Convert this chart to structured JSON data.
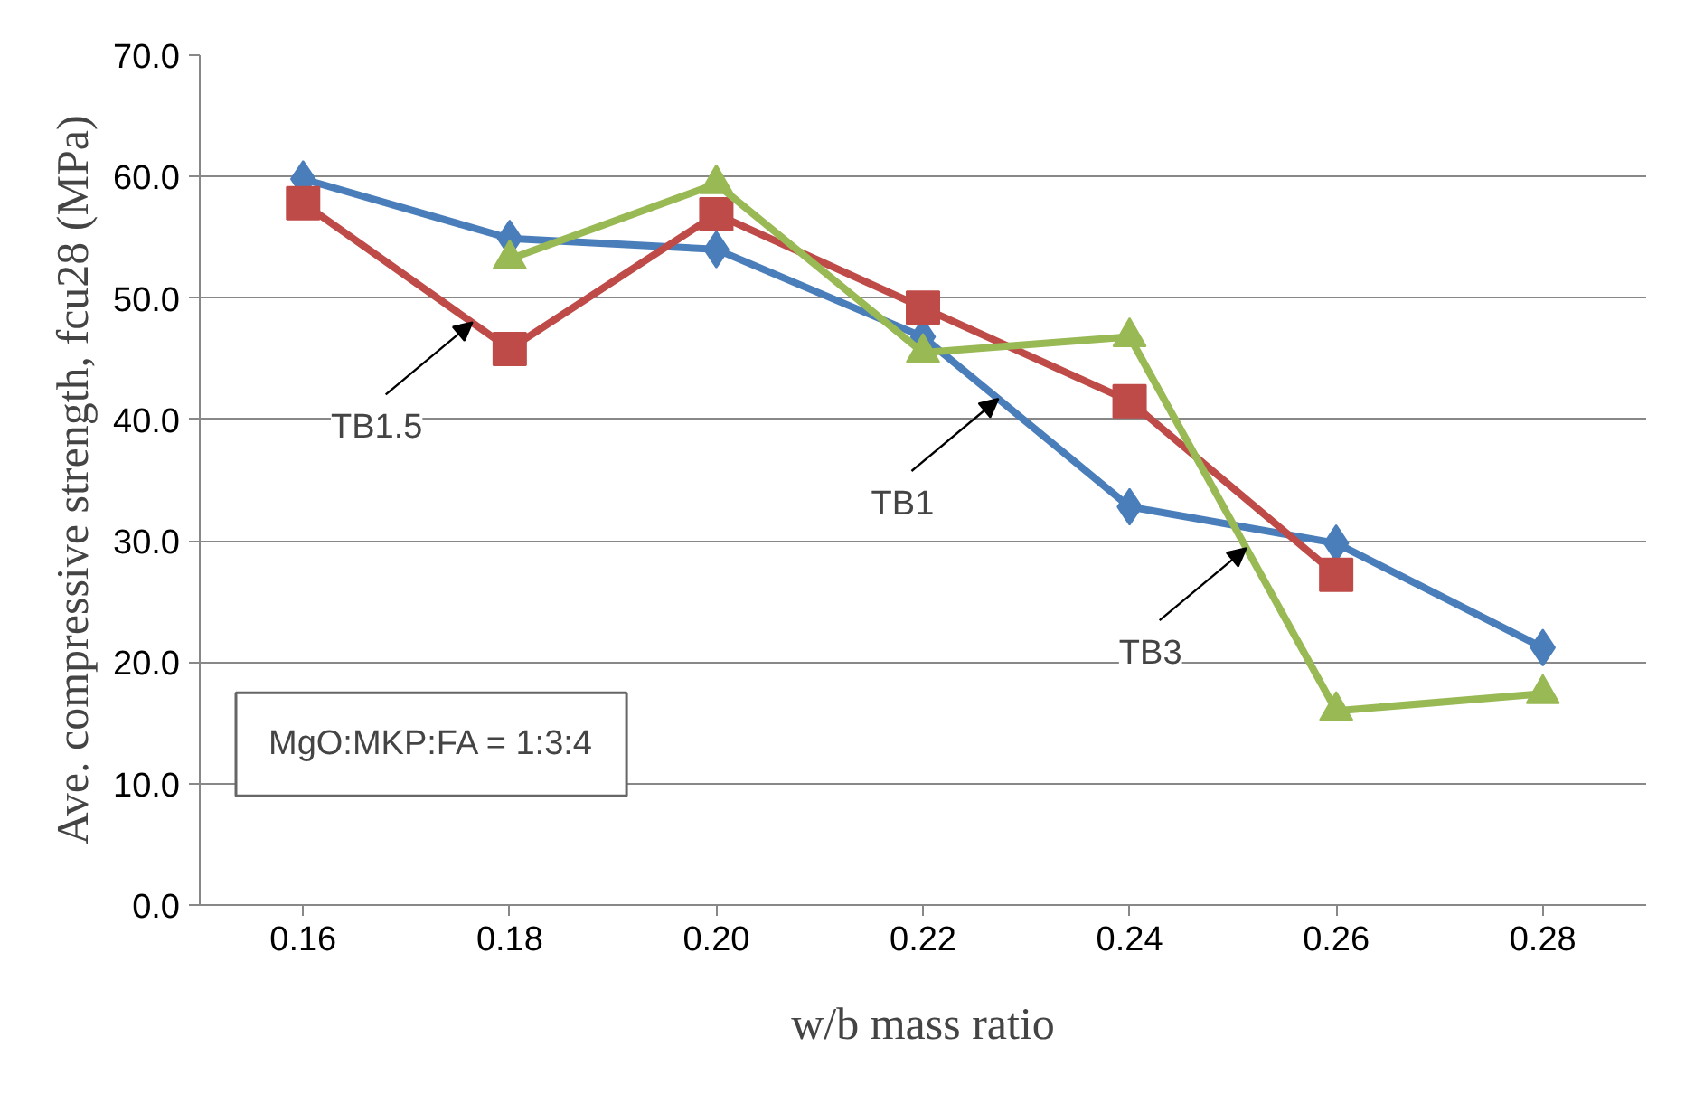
{
  "chart_data": {
    "type": "line",
    "xlabel": "w/b mass ratio",
    "ylabel": "Ave. compressive strength, fcu28 (MPa)",
    "x": [
      0.16,
      0.18,
      0.2,
      0.22,
      0.24,
      0.26,
      0.28
    ],
    "series": [
      {
        "color": "#4a7ebb",
        "marker": "diamond",
        "values": [
          59.8,
          54.9,
          54.0,
          46.8,
          32.8,
          29.8,
          21.2
        ]
      },
      {
        "color": "#be4b48",
        "marker": "square",
        "values": [
          57.8,
          45.8,
          56.9,
          49.2,
          41.5,
          27.2,
          null
        ]
      },
      {
        "color": "#98b954",
        "marker": "triangle",
        "values": [
          null,
          53.2,
          59.4,
          45.5,
          46.8,
          16.0,
          17.4
        ]
      }
    ],
    "xlim": [
      0.15,
      0.29
    ],
    "ylim": [
      0,
      70
    ],
    "xticks": [
      0.16,
      0.18,
      {
        "value": 0.2,
        "label": "0.20"
      },
      0.22,
      0.24,
      0.26,
      0.28
    ],
    "yticks": [
      {
        "value": 0,
        "label": "0.0"
      },
      {
        "value": 10,
        "label": "10.0"
      },
      {
        "value": 20,
        "label": "20.0"
      },
      {
        "value": 30,
        "label": "30.0"
      },
      {
        "value": 40,
        "label": "40.0"
      },
      {
        "value": 50,
        "label": "50.0"
      },
      {
        "value": 60,
        "label": "60.0"
      },
      {
        "value": 70,
        "label": "70.0"
      }
    ],
    "grid": "y",
    "line_style": "solid",
    "annotations": [
      {
        "text": "TB1.5",
        "x": 0.1764,
        "y": 48.0
      },
      {
        "text": "TB1",
        "x": 0.2273,
        "y": 41.7
      },
      {
        "text": "TB3",
        "x": 0.2513,
        "y": 29.4
      },
      "MgO:MKP:FA = 1:3:4"
    ]
  }
}
